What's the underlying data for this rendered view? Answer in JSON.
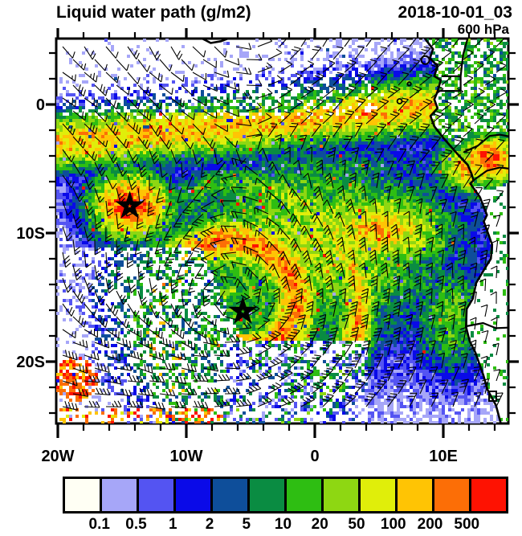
{
  "header": {
    "title": "Liquid water path (g/m2)",
    "datetime": "2018-10-01_03",
    "level": "600 hPa"
  },
  "axes": {
    "lat_ticks": [
      {
        "label": "0",
        "deg": 0
      },
      {
        "label": "10S",
        "deg": -10
      },
      {
        "label": "20S",
        "deg": -20
      }
    ],
    "lon_ticks": [
      {
        "label": "20W",
        "deg": -20
      },
      {
        "label": "10W",
        "deg": -10
      },
      {
        "label": "0",
        "deg": 0
      },
      {
        "label": "10E",
        "deg": 10
      }
    ],
    "minor_interval_deg": 2
  },
  "colorbar": {
    "labels": [
      "0.1",
      "0.5",
      "1",
      "2",
      "5",
      "10",
      "20",
      "50",
      "100",
      "200",
      "500"
    ],
    "colors": [
      "#FFFFF4",
      "#A6A6F8",
      "#5454F2",
      "#0A0AE8",
      "#0E4E9A",
      "#0A8C42",
      "#2EBE12",
      "#8ED712",
      "#E0EE0A",
      "#FFC404",
      "#FC6E06",
      "#FE1202"
    ]
  },
  "markers": [
    {
      "symbol": "star",
      "lon_deg": -14.4,
      "lat_deg": -7.9
    },
    {
      "symbol": "star",
      "lon_deg": -5.6,
      "lat_deg": -16.1
    }
  ],
  "chart_data": {
    "type": "heatmap",
    "title": "Liquid water path (g/m2)",
    "valid_time": "2018-10-01_03",
    "pressure_level": "600 hPa",
    "units": "g/m2",
    "domain": {
      "lon_deg": [
        -20,
        15.1
      ],
      "lat_deg": [
        -24.9,
        5.1
      ]
    },
    "color_scale": {
      "levels": [
        0.1,
        0.5,
        1,
        2,
        5,
        10,
        20,
        50,
        100,
        200,
        500
      ],
      "colors": [
        "#FFFFF4",
        "#A6A6F8",
        "#5454F2",
        "#0A0AE8",
        "#0E4E9A",
        "#0A8C42",
        "#2EBE12",
        "#8ED712",
        "#E0EE0A",
        "#FFC404",
        "#FC6E06",
        "#FE1202"
      ]
    },
    "overlays": [
      "600 hPa wind barbs",
      "west-central Africa coastline and country borders",
      "two star markers"
    ],
    "markers": [
      {
        "symbol": "star",
        "lon_deg": -14.4,
        "lat_deg": -7.9
      },
      {
        "symbol": "star",
        "lon_deg": -5.6,
        "lat_deg": -16.1
      }
    ],
    "features": [
      "broad orange band (100-200 g/m2) along 0 to 5S across the basin",
      "orange-red maximum (200-500 g/m2) near 14W 8S around first star",
      "cyclonic spiral of yellow/orange and green bands around 5.6W 16S (second star)",
      "speckled clear/white air mass in the northwest and southwest quadrants",
      "white region with blue speckles (0.1-2 g/m2) near 2W 21S",
      "orange-red patch over the Congo/Angola coast near 13E 4S",
      "mostly clear air over inland southern Africa east of the coastline"
    ]
  }
}
